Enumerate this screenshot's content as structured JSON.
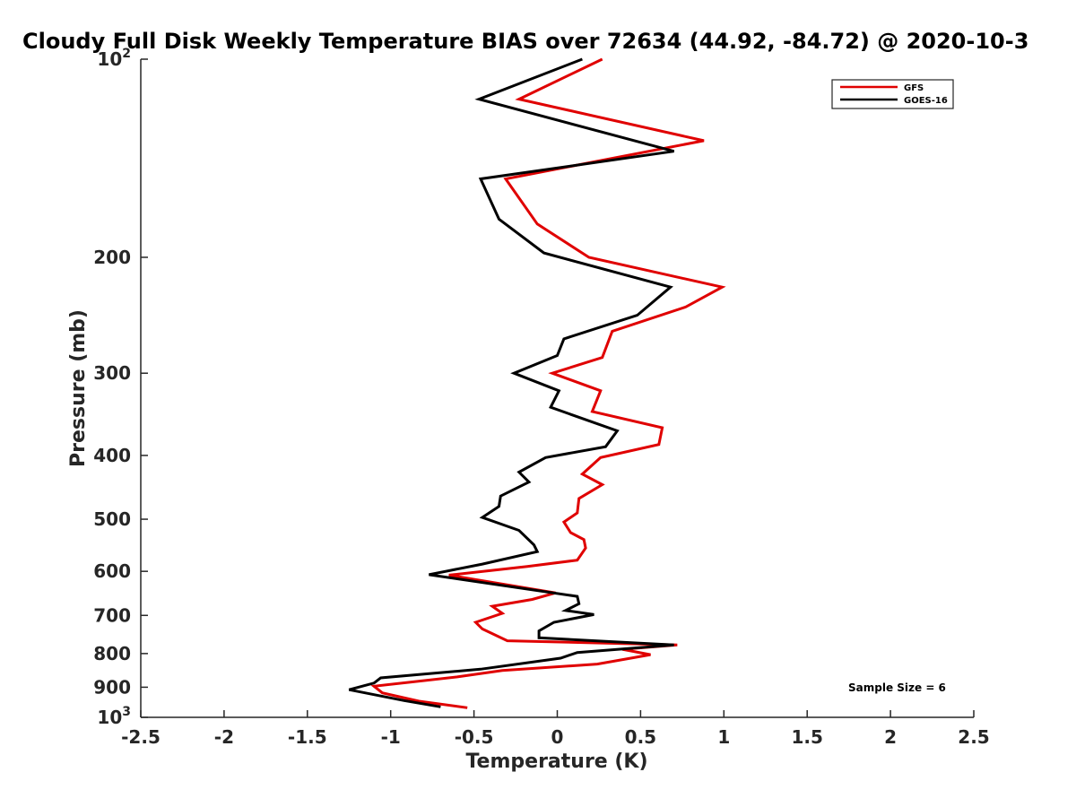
{
  "chart_data": {
    "type": "line",
    "title": "Cloudy Full Disk Weekly Temperature BIAS over 72634 (44.92, -84.72) @ 2020-10-3",
    "xlabel": "Temperature (K)",
    "ylabel": "Pressure (mb)",
    "xlim": [
      -2.5,
      2.5
    ],
    "ylim": [
      100,
      1000
    ],
    "y_scale": "log",
    "y_reversed": true,
    "x_ticks": [
      "-2.5",
      "-2",
      "-1.5",
      "-1",
      "-0.5",
      "0",
      "0.5",
      "1",
      "1.5",
      "2",
      "2.5"
    ],
    "y_ticks": [
      {
        "value": 100,
        "base": "10",
        "exp": "2"
      },
      {
        "value": 200,
        "label": "200"
      },
      {
        "value": 300,
        "label": "300"
      },
      {
        "value": 400,
        "label": "400"
      },
      {
        "value": 500,
        "label": "500"
      },
      {
        "value": 600,
        "label": "600"
      },
      {
        "value": 700,
        "label": "700"
      },
      {
        "value": 800,
        "label": "800"
      },
      {
        "value": 900,
        "label": "900"
      },
      {
        "value": 1000,
        "base": "10",
        "exp": "3"
      }
    ],
    "grid": false,
    "legend_position": "top-right",
    "annotation": "Sample Size = 6",
    "series": [
      {
        "name": "GFS",
        "color": "#e00000",
        "points": [
          [
            0.27,
            100
          ],
          [
            -0.23,
            115
          ],
          [
            0.88,
            133
          ],
          [
            -0.31,
            152
          ],
          [
            -0.12,
            178
          ],
          [
            0.19,
            200
          ],
          [
            0.99,
            222
          ],
          [
            0.77,
            238
          ],
          [
            0.33,
            259
          ],
          [
            0.27,
            284
          ],
          [
            -0.03,
            300
          ],
          [
            0.26,
            319
          ],
          [
            0.21,
            343
          ],
          [
            0.63,
            363
          ],
          [
            0.61,
            385
          ],
          [
            0.26,
            403
          ],
          [
            0.15,
            427
          ],
          [
            0.27,
            443
          ],
          [
            0.13,
            465
          ],
          [
            0.12,
            489
          ],
          [
            0.04,
            505
          ],
          [
            0.08,
            524
          ],
          [
            0.16,
            537
          ],
          [
            0.17,
            553
          ],
          [
            0.12,
            577
          ],
          [
            -0.18,
            590
          ],
          [
            -0.65,
            608
          ],
          [
            -0.01,
            647
          ],
          [
            -0.15,
            662
          ],
          [
            -0.39,
            678
          ],
          [
            -0.33,
            695
          ],
          [
            -0.49,
            717
          ],
          [
            -0.45,
            734
          ],
          [
            -0.3,
            765
          ],
          [
            0.72,
            776
          ],
          [
            0.39,
            788
          ],
          [
            0.56,
            803
          ],
          [
            0.24,
            830
          ],
          [
            -0.33,
            849
          ],
          [
            -0.6,
            868
          ],
          [
            -1.1,
            897
          ],
          [
            -1.05,
            918
          ],
          [
            -0.83,
            945
          ],
          [
            -0.54,
            967
          ]
        ]
      },
      {
        "name": "GOES-16",
        "color": "#000000",
        "points": [
          [
            0.15,
            100
          ],
          [
            -0.47,
            115
          ],
          [
            0.7,
            138
          ],
          [
            -0.46,
            152
          ],
          [
            -0.35,
            175
          ],
          [
            -0.08,
            197
          ],
          [
            0.68,
            222
          ],
          [
            0.48,
            245
          ],
          [
            0.04,
            266
          ],
          [
            0.0,
            282
          ],
          [
            -0.26,
            300
          ],
          [
            0.01,
            319
          ],
          [
            -0.04,
            338
          ],
          [
            0.36,
            367
          ],
          [
            0.29,
            388
          ],
          [
            -0.07,
            403
          ],
          [
            -0.23,
            424
          ],
          [
            -0.17,
            439
          ],
          [
            -0.34,
            461
          ],
          [
            -0.35,
            478
          ],
          [
            -0.45,
            497
          ],
          [
            -0.23,
            520
          ],
          [
            -0.14,
            547
          ],
          [
            -0.12,
            560
          ],
          [
            -0.45,
            585
          ],
          [
            -0.77,
            607
          ],
          [
            0.12,
            655
          ],
          [
            0.13,
            672
          ],
          [
            0.05,
            688
          ],
          [
            0.22,
            698
          ],
          [
            -0.02,
            717
          ],
          [
            -0.11,
            739
          ],
          [
            -0.11,
            757
          ],
          [
            0.7,
            776
          ],
          [
            0.12,
            797
          ],
          [
            0.02,
            813
          ],
          [
            -0.46,
            845
          ],
          [
            -1.06,
            871
          ],
          [
            -1.1,
            887
          ],
          [
            -1.25,
            908
          ],
          [
            -0.92,
            943
          ],
          [
            -0.7,
            964
          ]
        ]
      }
    ]
  }
}
